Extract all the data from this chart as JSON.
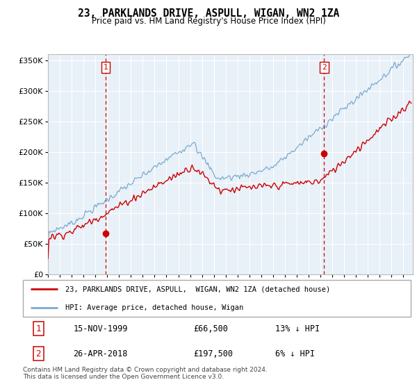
{
  "title": "23, PARKLANDS DRIVE, ASPULL, WIGAN, WN2 1ZA",
  "subtitle": "Price paid vs. HM Land Registry's House Price Index (HPI)",
  "hpi_color": "#7aaad0",
  "price_color": "#cc0000",
  "marker_color": "#cc0000",
  "bg_color": "#e8f0f8",
  "grid_color": "#ffffff",
  "ylim": [
    0,
    360000
  ],
  "yticks": [
    0,
    50000,
    100000,
    150000,
    200000,
    250000,
    300000,
    350000
  ],
  "xlim_start": 1995.0,
  "xlim_end": 2025.8,
  "purchase1_year": 1999.88,
  "purchase1_price": 66500,
  "purchase1_label": "1",
  "purchase2_year": 2018.32,
  "purchase2_price": 197500,
  "purchase2_label": "2",
  "legend_line1": "23, PARKLANDS DRIVE, ASPULL,  WIGAN, WN2 1ZA (detached house)",
  "legend_line2": "HPI: Average price, detached house, Wigan",
  "table_row1": [
    "1",
    "15-NOV-1999",
    "£66,500",
    "13% ↓ HPI"
  ],
  "table_row2": [
    "2",
    "26-APR-2018",
    "£197,500",
    "6% ↓ HPI"
  ],
  "footer": "Contains HM Land Registry data © Crown copyright and database right 2024.\nThis data is licensed under the Open Government Licence v3.0.",
  "xtick_years": [
    1995,
    1996,
    1997,
    1998,
    1999,
    2000,
    2001,
    2002,
    2003,
    2004,
    2005,
    2006,
    2007,
    2008,
    2009,
    2010,
    2011,
    2012,
    2013,
    2014,
    2015,
    2016,
    2017,
    2018,
    2019,
    2020,
    2021,
    2022,
    2023,
    2024,
    2025
  ]
}
